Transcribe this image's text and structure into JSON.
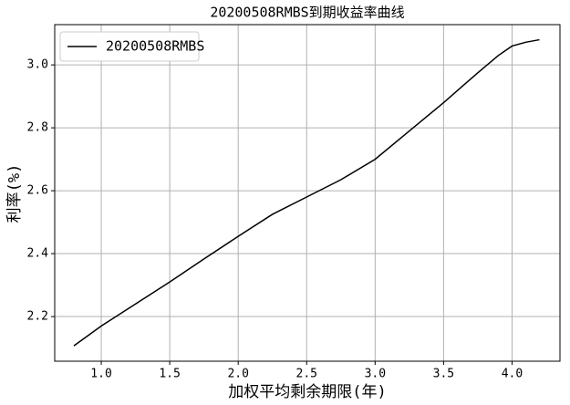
{
  "chart_data": {
    "type": "line",
    "title": "20200508RMBS到期收益率曲线",
    "xlabel": "加权平均剩余期限(年)",
    "ylabel": "利率(%)",
    "x": [
      0.8,
      1.0,
      1.25,
      1.5,
      1.75,
      2.0,
      2.25,
      2.5,
      2.75,
      3.0,
      3.25,
      3.5,
      3.75,
      3.9,
      4.0,
      4.1,
      4.2
    ],
    "series": [
      {
        "name": "20200508RMBS",
        "color": "#000000",
        "values": [
          2.107,
          2.17,
          2.24,
          2.31,
          2.383,
          2.455,
          2.525,
          2.58,
          2.635,
          2.7,
          2.79,
          2.88,
          2.975,
          3.03,
          3.06,
          3.072,
          3.08
        ]
      }
    ],
    "xlim": [
      0.66,
      4.35
    ],
    "ylim": [
      2.058,
      3.128
    ],
    "xticks": [
      {
        "value": 1,
        "label": "1.0"
      },
      1.5,
      {
        "value": 2,
        "label": "2.0"
      },
      2.5,
      {
        "value": 3,
        "label": "3.0"
      },
      3.5,
      {
        "value": 4,
        "label": "4.0"
      }
    ],
    "yticks": [
      2.2,
      2.4,
      2.6,
      2.8,
      {
        "value": 3,
        "label": "3.0"
      }
    ],
    "grid": true,
    "legend": "upper-left"
  }
}
